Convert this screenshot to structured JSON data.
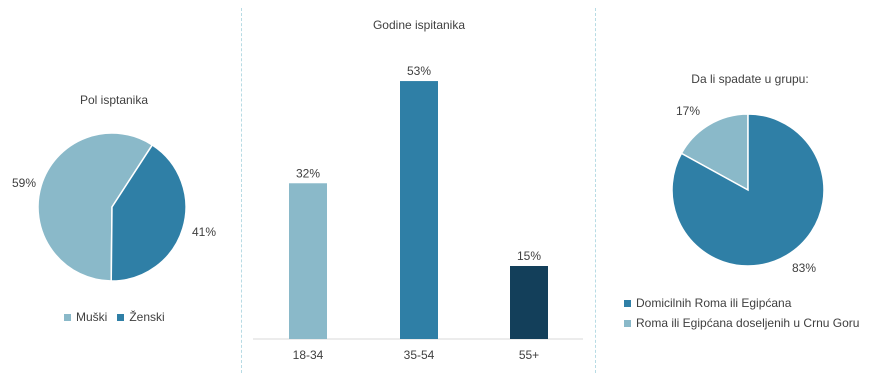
{
  "colors": {
    "light": "#8ab9c9",
    "mid": "#2f7fa6",
    "dark": "#133f5a"
  },
  "chart_data": [
    {
      "type": "pie",
      "title": "Pol isptanika",
      "categories": [
        "Muški",
        "Ženski"
      ],
      "values": [
        59,
        41
      ],
      "labels": [
        "59%",
        "41%"
      ],
      "legend_position": "bottom"
    },
    {
      "type": "bar",
      "title": "Godine ispitanika",
      "categories": [
        "18-34",
        "35-54",
        "55+"
      ],
      "values": [
        32,
        53,
        15
      ],
      "labels": [
        "32%",
        "53%",
        "15%"
      ],
      "ylim": [
        0,
        60
      ],
      "grid": false
    },
    {
      "type": "pie",
      "title": "Da li spadate u grupu:",
      "categories": [
        "Domicilnih Roma ili Egipćana",
        "Roma ili Egipćana doseljenih u Crnu Goru"
      ],
      "values": [
        83,
        17
      ],
      "labels": [
        "83%",
        "17%"
      ],
      "legend_position": "bottom"
    }
  ]
}
